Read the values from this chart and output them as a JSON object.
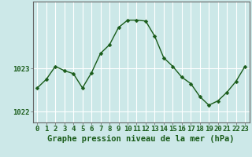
{
  "hours": [
    0,
    1,
    2,
    3,
    4,
    5,
    6,
    7,
    8,
    9,
    10,
    11,
    12,
    13,
    14,
    15,
    16,
    17,
    18,
    19,
    20,
    21,
    22,
    23
  ],
  "pressure": [
    1022.55,
    1022.75,
    1023.05,
    1022.95,
    1022.88,
    1022.55,
    1022.9,
    1023.35,
    1023.55,
    1023.95,
    1024.12,
    1024.12,
    1024.1,
    1023.75,
    1023.25,
    1023.05,
    1022.8,
    1022.65,
    1022.35,
    1022.15,
    1022.25,
    1022.45,
    1022.7,
    1023.05
  ],
  "line_color": "#1a5c1a",
  "marker": "D",
  "markersize": 2.5,
  "bg_color": "#cce8e8",
  "grid_color": "#ffffff",
  "xlabel": "Graphe pression niveau de la mer (hPa)",
  "yticks": [
    1022,
    1023
  ],
  "ylim": [
    1021.75,
    1024.55
  ],
  "xlim": [
    -0.5,
    23.5
  ],
  "xlabel_fontsize": 7.5,
  "tick_fontsize": 6.5,
  "spine_color": "#666666",
  "text_color": "#1a5c1a"
}
